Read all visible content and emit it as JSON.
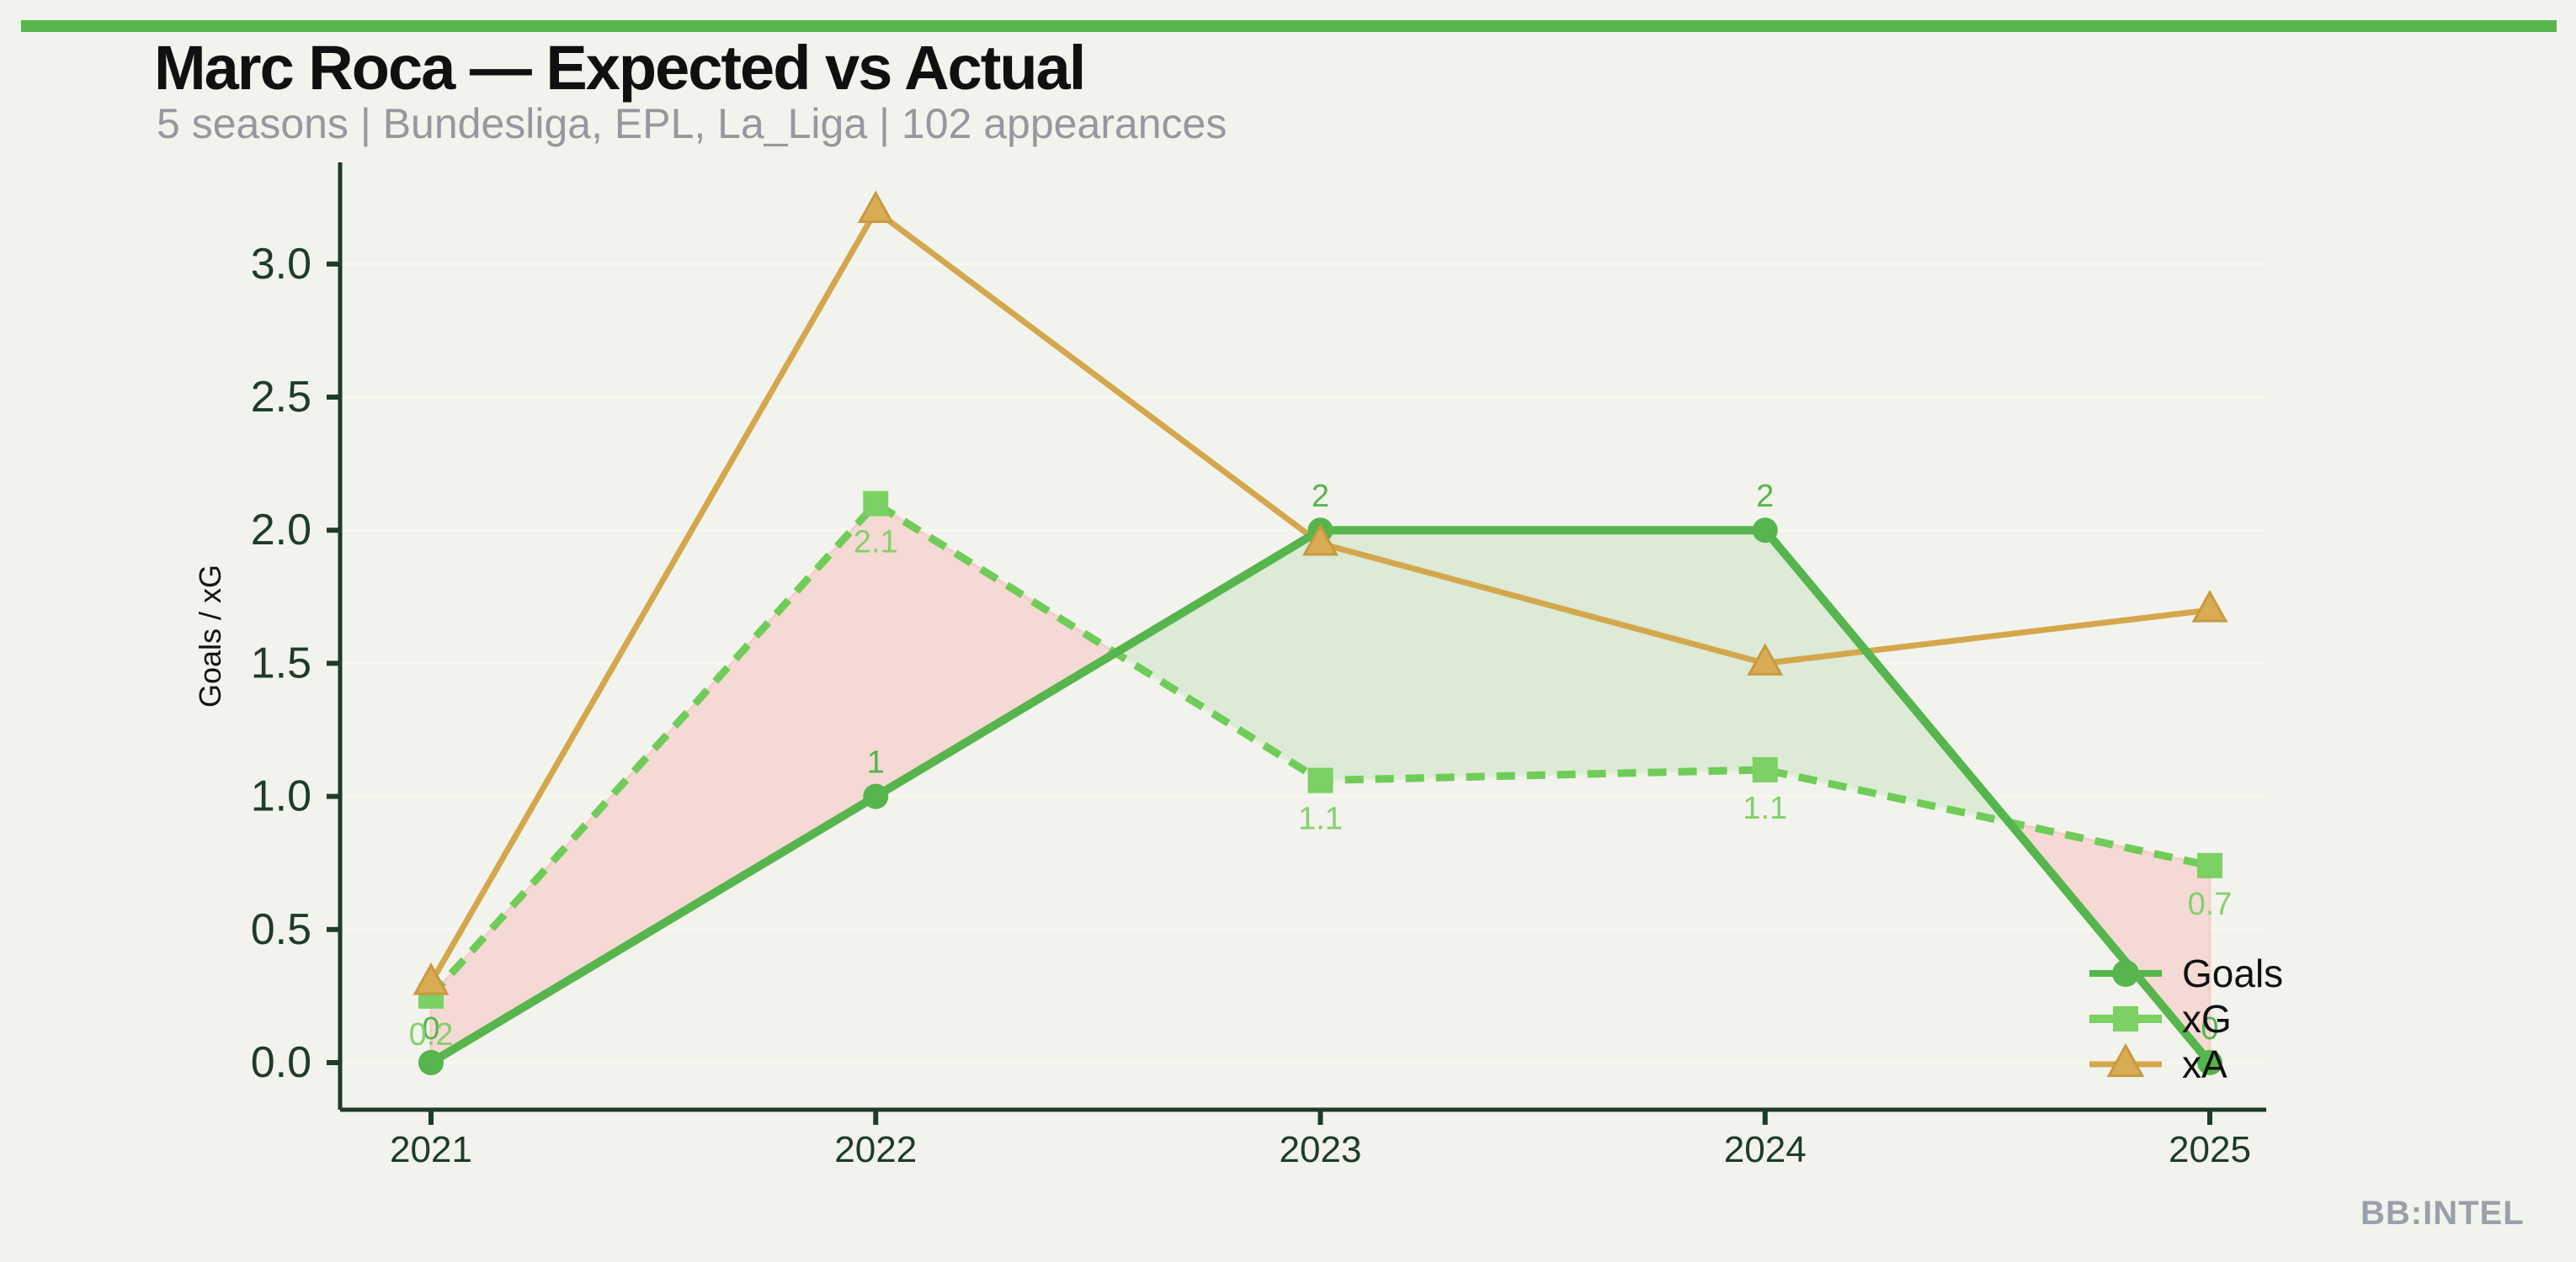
{
  "header": {
    "title": "Marc Roca — Expected vs Actual",
    "subtitle": "5 seasons | Bundesliga, EPL, La_Liga | 102 appearances"
  },
  "footer": {
    "brand": "BB:INTEL"
  },
  "chart_data": {
    "type": "line",
    "title": "Marc Roca — Expected vs Actual",
    "xlabel": "",
    "ylabel": "Goals / xG",
    "x": [
      2021,
      2022,
      2023,
      2024,
      2025
    ],
    "xticklabels": [
      "2021",
      "2022",
      "2023",
      "2024",
      "2025"
    ],
    "yticks": [
      0.0,
      0.5,
      1.0,
      1.5,
      2.0,
      2.5,
      3.0
    ],
    "ytick_labels": [
      "0.0",
      "0.5",
      "1.0",
      "1.5",
      "2.0",
      "2.5",
      "3.0"
    ],
    "ylim": [
      0,
      3.4
    ],
    "grid": "horizontal-faint",
    "legend_position": "lower-right-inside",
    "legend_entries": [
      "Goals",
      "xG",
      "xA"
    ],
    "series": [
      {
        "name": "Goals",
        "marker": "circle",
        "dash": "solid",
        "color": "#56b54c",
        "marker_color": "#56b54c",
        "values": [
          0,
          1,
          2,
          2,
          0
        ],
        "labels": [
          "0",
          "1",
          "2",
          "2",
          "0"
        ],
        "label_side": "above"
      },
      {
        "name": "xG",
        "marker": "square",
        "dash": "dashed",
        "color": "#6fcc58",
        "marker_color": "#7bd163",
        "values": [
          0.25,
          2.1,
          1.06,
          1.1,
          0.74
        ],
        "labels": [
          "0.2",
          "2.1",
          "1.1",
          "1.1",
          "0.7"
        ],
        "label_side": "below"
      },
      {
        "name": "xA",
        "marker": "triangle",
        "dash": "solid",
        "color": "#d4a74c",
        "marker_color": "#d9ab55",
        "values": [
          0.3,
          3.2,
          1.95,
          1.5,
          1.7
        ],
        "labels": [],
        "label_side": "none"
      }
    ],
    "fills": {
      "between": [
        "Goals",
        "xG"
      ],
      "over_color": "#dcead6",
      "under_color": "#f5d9d4",
      "over_edge": "#e3efda",
      "under_edge": "#f4cfc9"
    },
    "colors": {
      "background": "#f2f3ec",
      "accent_bar": "#56b54c",
      "axis": "#1e3c28",
      "gridline": "#f8f8f1",
      "title": "#101010",
      "subtitle": "#97979f",
      "ylabel_color": "#141414",
      "goals_label": "#56b54c",
      "xg_label": "#85d06c",
      "legend_text": "#111111",
      "brand": "#9aa0ab"
    }
  }
}
